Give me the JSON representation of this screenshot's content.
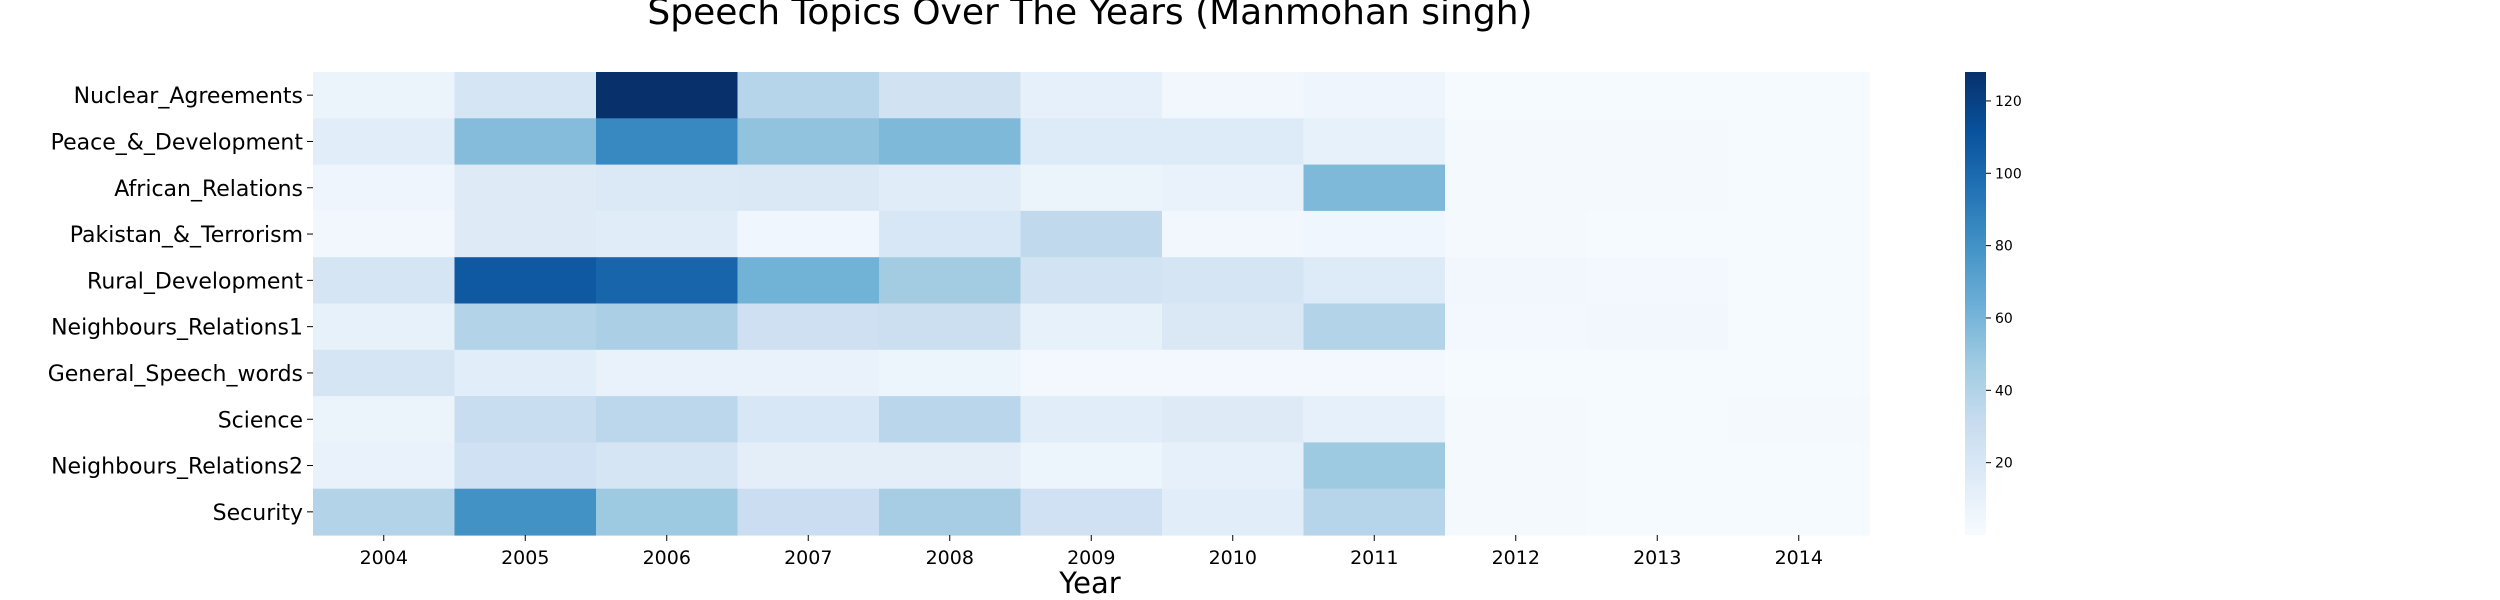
{
  "chart_data": {
    "type": "heatmap",
    "title": "Speech Topics Over The Years (Manmohan singh)",
    "xlabel": "Year",
    "ylabel": "",
    "colormap": "Blues",
    "colorbar_range": [
      0,
      128
    ],
    "colorbar_ticks": [
      "20",
      "40",
      "60",
      "80",
      "100",
      "120"
    ],
    "x_categories": [
      "2004",
      "2005",
      "2006",
      "2007",
      "2008",
      "2009",
      "2010",
      "2011",
      "2012",
      "2013",
      "2014"
    ],
    "y_categories": [
      "Nuclear_Agreements",
      "Peace_&_Development",
      "African_Relations",
      "Pakistan_&_Terrorism",
      "Rural_Development",
      "Neighbours_Relations1",
      "General_Speech_words",
      "Science",
      "Neighbours_Relations2",
      "Security"
    ],
    "values": [
      [
        8,
        22,
        128,
        38,
        25,
        11,
        4,
        6,
        1,
        1,
        1
      ],
      [
        14,
        56,
        85,
        52,
        58,
        17,
        17,
        10,
        2,
        2,
        1
      ],
      [
        6,
        16,
        18,
        19,
        15,
        8,
        9,
        58,
        2,
        2,
        1
      ],
      [
        4,
        16,
        15,
        5,
        20,
        34,
        4,
        5,
        2,
        1,
        1
      ],
      [
        22,
        108,
        102,
        62,
        46,
        24,
        22,
        17,
        4,
        3,
        1
      ],
      [
        10,
        40,
        43,
        27,
        28,
        10,
        19,
        40,
        3,
        4,
        1
      ],
      [
        22,
        14,
        9,
        9,
        7,
        3,
        3,
        3,
        1,
        1,
        1
      ],
      [
        8,
        30,
        36,
        20,
        37,
        14,
        16,
        11,
        2,
        1,
        2
      ],
      [
        9,
        26,
        22,
        13,
        13,
        7,
        11,
        48,
        2,
        1,
        1
      ],
      [
        40,
        80,
        48,
        29,
        45,
        26,
        14,
        38,
        2,
        1,
        1
      ]
    ]
  }
}
